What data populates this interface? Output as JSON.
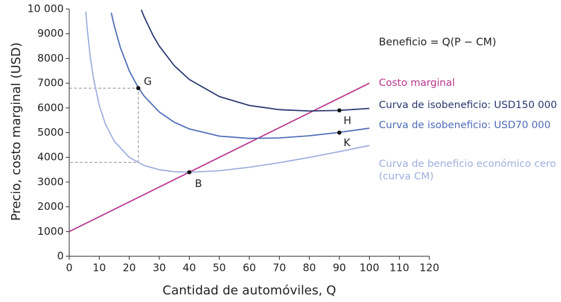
{
  "chart_data": {
    "type": "line",
    "x_label": "Cantidad de automóviles, Q",
    "y_label": "Precio, costo marginal (USD)",
    "formula": "Beneficio = Q(P − CM)",
    "xlim": [
      0,
      120
    ],
    "xticks": [
      0,
      10,
      20,
      30,
      40,
      50,
      60,
      70,
      80,
      90,
      100,
      110,
      120
    ],
    "ylim": [
      0,
      10000
    ],
    "yticks": [
      0,
      1000,
      2000,
      3000,
      4000,
      5000,
      6000,
      7000,
      8000,
      9000,
      {
        "value": 10000,
        "label": "10 000"
      }
    ],
    "series": [
      {
        "name": "Costo marginal",
        "color": "#b8348f",
        "x": [
          0,
          100
        ],
        "values": [
          1000,
          7000
        ]
      },
      {
        "name": "Curva de isobeneficio: USD150 000",
        "color": "#27366e",
        "x": [
          24,
          25,
          28,
          30,
          35,
          40,
          50,
          60,
          70,
          80,
          90,
          100
        ],
        "values": [
          9970,
          9670,
          8911,
          8500,
          7707,
          7150,
          6460,
          6100,
          5929,
          5875,
          5900,
          5980
        ]
      },
      {
        "name": "Curva de isobeneficio: USD70 000",
        "color": "#4d6cb8",
        "x": [
          14,
          15,
          17,
          20,
          23,
          25,
          30,
          35,
          40,
          50,
          60,
          70,
          80,
          90,
          100
        ],
        "values": [
          9849,
          9317,
          8451,
          7500,
          6820,
          6470,
          5833,
          5421,
          5150,
          4860,
          4767,
          4786,
          4875,
          5011,
          5180
        ]
      },
      {
        "name": "Curva de beneficio económico cero (curva CM)",
        "color": "#9dafdd",
        "x": [
          5.5,
          6,
          7,
          8,
          10,
          12,
          15,
          20,
          25,
          30,
          35,
          40,
          50,
          60,
          70,
          80,
          90,
          100
        ],
        "values": [
          9892,
          9180,
          8067,
          7240,
          6100,
          5360,
          4650,
          4000,
          3670,
          3500,
          3421,
          3400,
          3460,
          3600,
          3786,
          4000,
          4233,
          4480
        ]
      }
    ],
    "points": [
      {
        "label": "G",
        "x": 23,
        "y": 6800
      },
      {
        "label": "B",
        "x": 40,
        "y": 3400
      },
      {
        "label": "H",
        "x": 90,
        "y": 5900
      },
      {
        "label": "K",
        "x": 90,
        "y": 5000
      }
    ],
    "guide": {
      "x": [
        0,
        23,
        23,
        0
      ],
      "values": [
        6800,
        6800,
        3800,
        3800
      ]
    }
  }
}
